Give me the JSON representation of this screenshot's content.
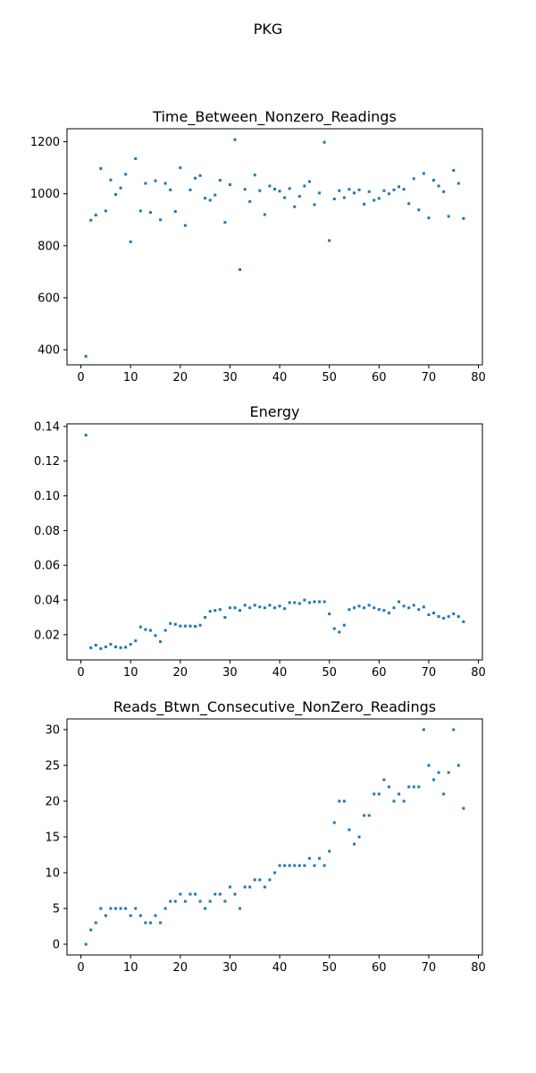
{
  "title": "PKG",
  "colors": {
    "marker": "#1f77b4"
  },
  "chart_data": [
    {
      "type": "scatter",
      "title": "Time_Between_Nonzero_Readings",
      "xlabel": "",
      "ylabel": "",
      "xlim": [
        -2.8,
        80.8
      ],
      "ylim": [
        342,
        1250
      ],
      "xticks": [
        0,
        10,
        20,
        30,
        40,
        50,
        60,
        70,
        80
      ],
      "yticks": [
        400,
        600,
        800,
        1000,
        1200
      ],
      "grid": false,
      "legend": "none",
      "x": [
        1,
        2,
        3,
        4,
        5,
        6,
        7,
        8,
        9,
        10,
        11,
        12,
        13,
        14,
        15,
        16,
        17,
        18,
        19,
        20,
        21,
        22,
        23,
        24,
        25,
        26,
        27,
        28,
        29,
        30,
        31,
        32,
        33,
        34,
        35,
        36,
        37,
        38,
        39,
        40,
        41,
        42,
        43,
        44,
        45,
        46,
        47,
        48,
        49,
        50,
        51,
        52,
        53,
        54,
        55,
        56,
        57,
        58,
        59,
        60,
        61,
        62,
        63,
        64,
        65,
        66,
        67,
        68,
        69,
        70,
        71,
        72,
        73,
        74,
        75,
        76,
        77
      ],
      "y": [
        375,
        898,
        918,
        1097,
        934,
        1053,
        997,
        1022,
        1075,
        815,
        1135,
        934,
        1040,
        928,
        1050,
        900,
        1040,
        1015,
        932,
        1100,
        878,
        1015,
        1060,
        1070,
        983,
        975,
        995,
        1052,
        890,
        1035,
        1208,
        708,
        1017,
        970,
        1072,
        1012,
        920,
        1030,
        1018,
        1010,
        985,
        1020,
        950,
        990,
        1030,
        1047,
        958,
        1003,
        1198,
        820,
        980,
        1012,
        985,
        1017,
        1003,
        1015,
        960,
        1008,
        975,
        982,
        1012,
        1000,
        1015,
        1027,
        1017,
        962,
        1058,
        938,
        1078,
        907,
        1052,
        1030,
        1008,
        913,
        1090,
        1040,
        905
      ]
    },
    {
      "type": "scatter",
      "title": "Energy",
      "xlabel": "",
      "ylabel": "",
      "xlim": [
        -2.8,
        80.8
      ],
      "ylim": [
        0.0055,
        0.1415
      ],
      "xticks": [
        0,
        10,
        20,
        30,
        40,
        50,
        60,
        70,
        80
      ],
      "yticks": [
        0.02,
        0.04,
        0.06,
        0.08,
        0.1,
        0.12,
        0.14
      ],
      "grid": false,
      "legend": "none",
      "x": [
        1,
        2,
        3,
        4,
        5,
        6,
        7,
        8,
        9,
        10,
        11,
        12,
        13,
        14,
        15,
        16,
        17,
        18,
        19,
        20,
        21,
        22,
        23,
        24,
        25,
        26,
        27,
        28,
        29,
        30,
        31,
        32,
        33,
        34,
        35,
        36,
        37,
        38,
        39,
        40,
        41,
        42,
        43,
        44,
        45,
        46,
        47,
        48,
        49,
        50,
        51,
        52,
        53,
        54,
        55,
        56,
        57,
        58,
        59,
        60,
        61,
        62,
        63,
        64,
        65,
        66,
        67,
        68,
        69,
        70,
        71,
        72,
        73,
        74,
        75,
        76,
        77
      ],
      "y": [
        0.135,
        0.0125,
        0.014,
        0.012,
        0.013,
        0.0145,
        0.013,
        0.0125,
        0.0128,
        0.0145,
        0.0165,
        0.0245,
        0.023,
        0.0225,
        0.0195,
        0.016,
        0.0225,
        0.0265,
        0.026,
        0.025,
        0.025,
        0.025,
        0.0248,
        0.0255,
        0.03,
        0.0335,
        0.034,
        0.0345,
        0.03,
        0.0355,
        0.0355,
        0.034,
        0.037,
        0.0355,
        0.037,
        0.036,
        0.0355,
        0.037,
        0.0355,
        0.0365,
        0.035,
        0.0385,
        0.0385,
        0.038,
        0.04,
        0.0385,
        0.039,
        0.039,
        0.039,
        0.032,
        0.0235,
        0.0215,
        0.0255,
        0.0345,
        0.0355,
        0.0365,
        0.0355,
        0.037,
        0.0355,
        0.0345,
        0.034,
        0.0325,
        0.0355,
        0.039,
        0.0365,
        0.0355,
        0.037,
        0.0345,
        0.036,
        0.0315,
        0.0325,
        0.0305,
        0.0295,
        0.0305,
        0.032,
        0.0305,
        0.0275
      ]
    },
    {
      "type": "scatter",
      "title": "Reads_Btwn_Consecutive_NonZero_Readings",
      "xlabel": "",
      "ylabel": "",
      "xlim": [
        -2.8,
        80.8
      ],
      "ylim": [
        -1.5,
        31.5
      ],
      "xticks": [
        0,
        10,
        20,
        30,
        40,
        50,
        60,
        70,
        80
      ],
      "yticks": [
        0,
        5,
        10,
        15,
        20,
        25,
        30
      ],
      "grid": false,
      "legend": "none",
      "x": [
        1,
        2,
        3,
        4,
        5,
        6,
        7,
        8,
        9,
        10,
        11,
        12,
        13,
        14,
        15,
        16,
        17,
        18,
        19,
        20,
        21,
        22,
        23,
        24,
        25,
        26,
        27,
        28,
        29,
        30,
        31,
        32,
        33,
        34,
        35,
        36,
        37,
        38,
        39,
        40,
        41,
        42,
        43,
        44,
        45,
        46,
        47,
        48,
        49,
        50,
        51,
        52,
        53,
        54,
        55,
        56,
        57,
        58,
        59,
        60,
        61,
        62,
        63,
        64,
        65,
        66,
        67,
        68,
        69,
        70,
        71,
        72,
        73,
        74,
        75,
        76,
        77
      ],
      "y": [
        0,
        2,
        3,
        5,
        4,
        5,
        5,
        5,
        5,
        4,
        5,
        4,
        3,
        3,
        4,
        3,
        5,
        6,
        6,
        7,
        6,
        7,
        7,
        6,
        5,
        6,
        7,
        7,
        6,
        8,
        7,
        5,
        8,
        8,
        9,
        9,
        8,
        9,
        10,
        11,
        11,
        11,
        11,
        11,
        11,
        12,
        11,
        12,
        11,
        13,
        17,
        20,
        20,
        16,
        14,
        15,
        18,
        18,
        21,
        21,
        23,
        22,
        20,
        21,
        20,
        22,
        22,
        22,
        30,
        25,
        23,
        24,
        21,
        24,
        30,
        25,
        19
      ]
    }
  ]
}
